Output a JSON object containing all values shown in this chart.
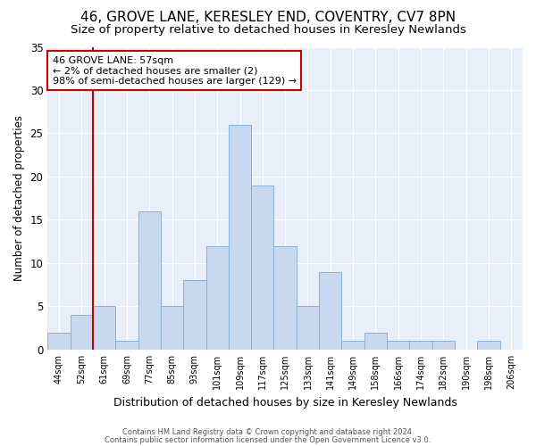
{
  "title": "46, GROVE LANE, KERESLEY END, COVENTRY, CV7 8PN",
  "subtitle": "Size of property relative to detached houses in Keresley Newlands",
  "xlabel": "Distribution of detached houses by size in Keresley Newlands",
  "ylabel": "Number of detached properties",
  "bin_labels": [
    "44sqm",
    "52sqm",
    "61sqm",
    "69sqm",
    "77sqm",
    "85sqm",
    "93sqm",
    "101sqm",
    "109sqm",
    "117sqm",
    "125sqm",
    "133sqm",
    "141sqm",
    "149sqm",
    "158sqm",
    "166sqm",
    "174sqm",
    "182sqm",
    "190sqm",
    "198sqm",
    "206sqm"
  ],
  "bar_values": [
    2,
    4,
    5,
    1,
    16,
    5,
    8,
    12,
    26,
    19,
    12,
    5,
    9,
    1,
    2,
    1,
    1,
    1,
    0,
    1,
    0
  ],
  "bar_color": "#c8d9ef",
  "bar_edge_color": "#8ab0d4",
  "ylim": [
    0,
    35
  ],
  "yticks": [
    0,
    5,
    10,
    15,
    20,
    25,
    30,
    35
  ],
  "vline_color": "#cc0000",
  "annotation_title": "46 GROVE LANE: 57sqm",
  "annotation_line1": "← 2% of detached houses are smaller (2)",
  "annotation_line2": "98% of semi-detached houses are larger (129) →",
  "annotation_box_color": "#ffffff",
  "annotation_border_color": "#cc0000",
  "footer1": "Contains HM Land Registry data © Crown copyright and database right 2024.",
  "footer2": "Contains public sector information licensed under the Open Government Licence v3.0.",
  "background_color": "#ffffff",
  "plot_bg_color": "#e8eff9",
  "title_fontsize": 11,
  "subtitle_fontsize": 9.5
}
